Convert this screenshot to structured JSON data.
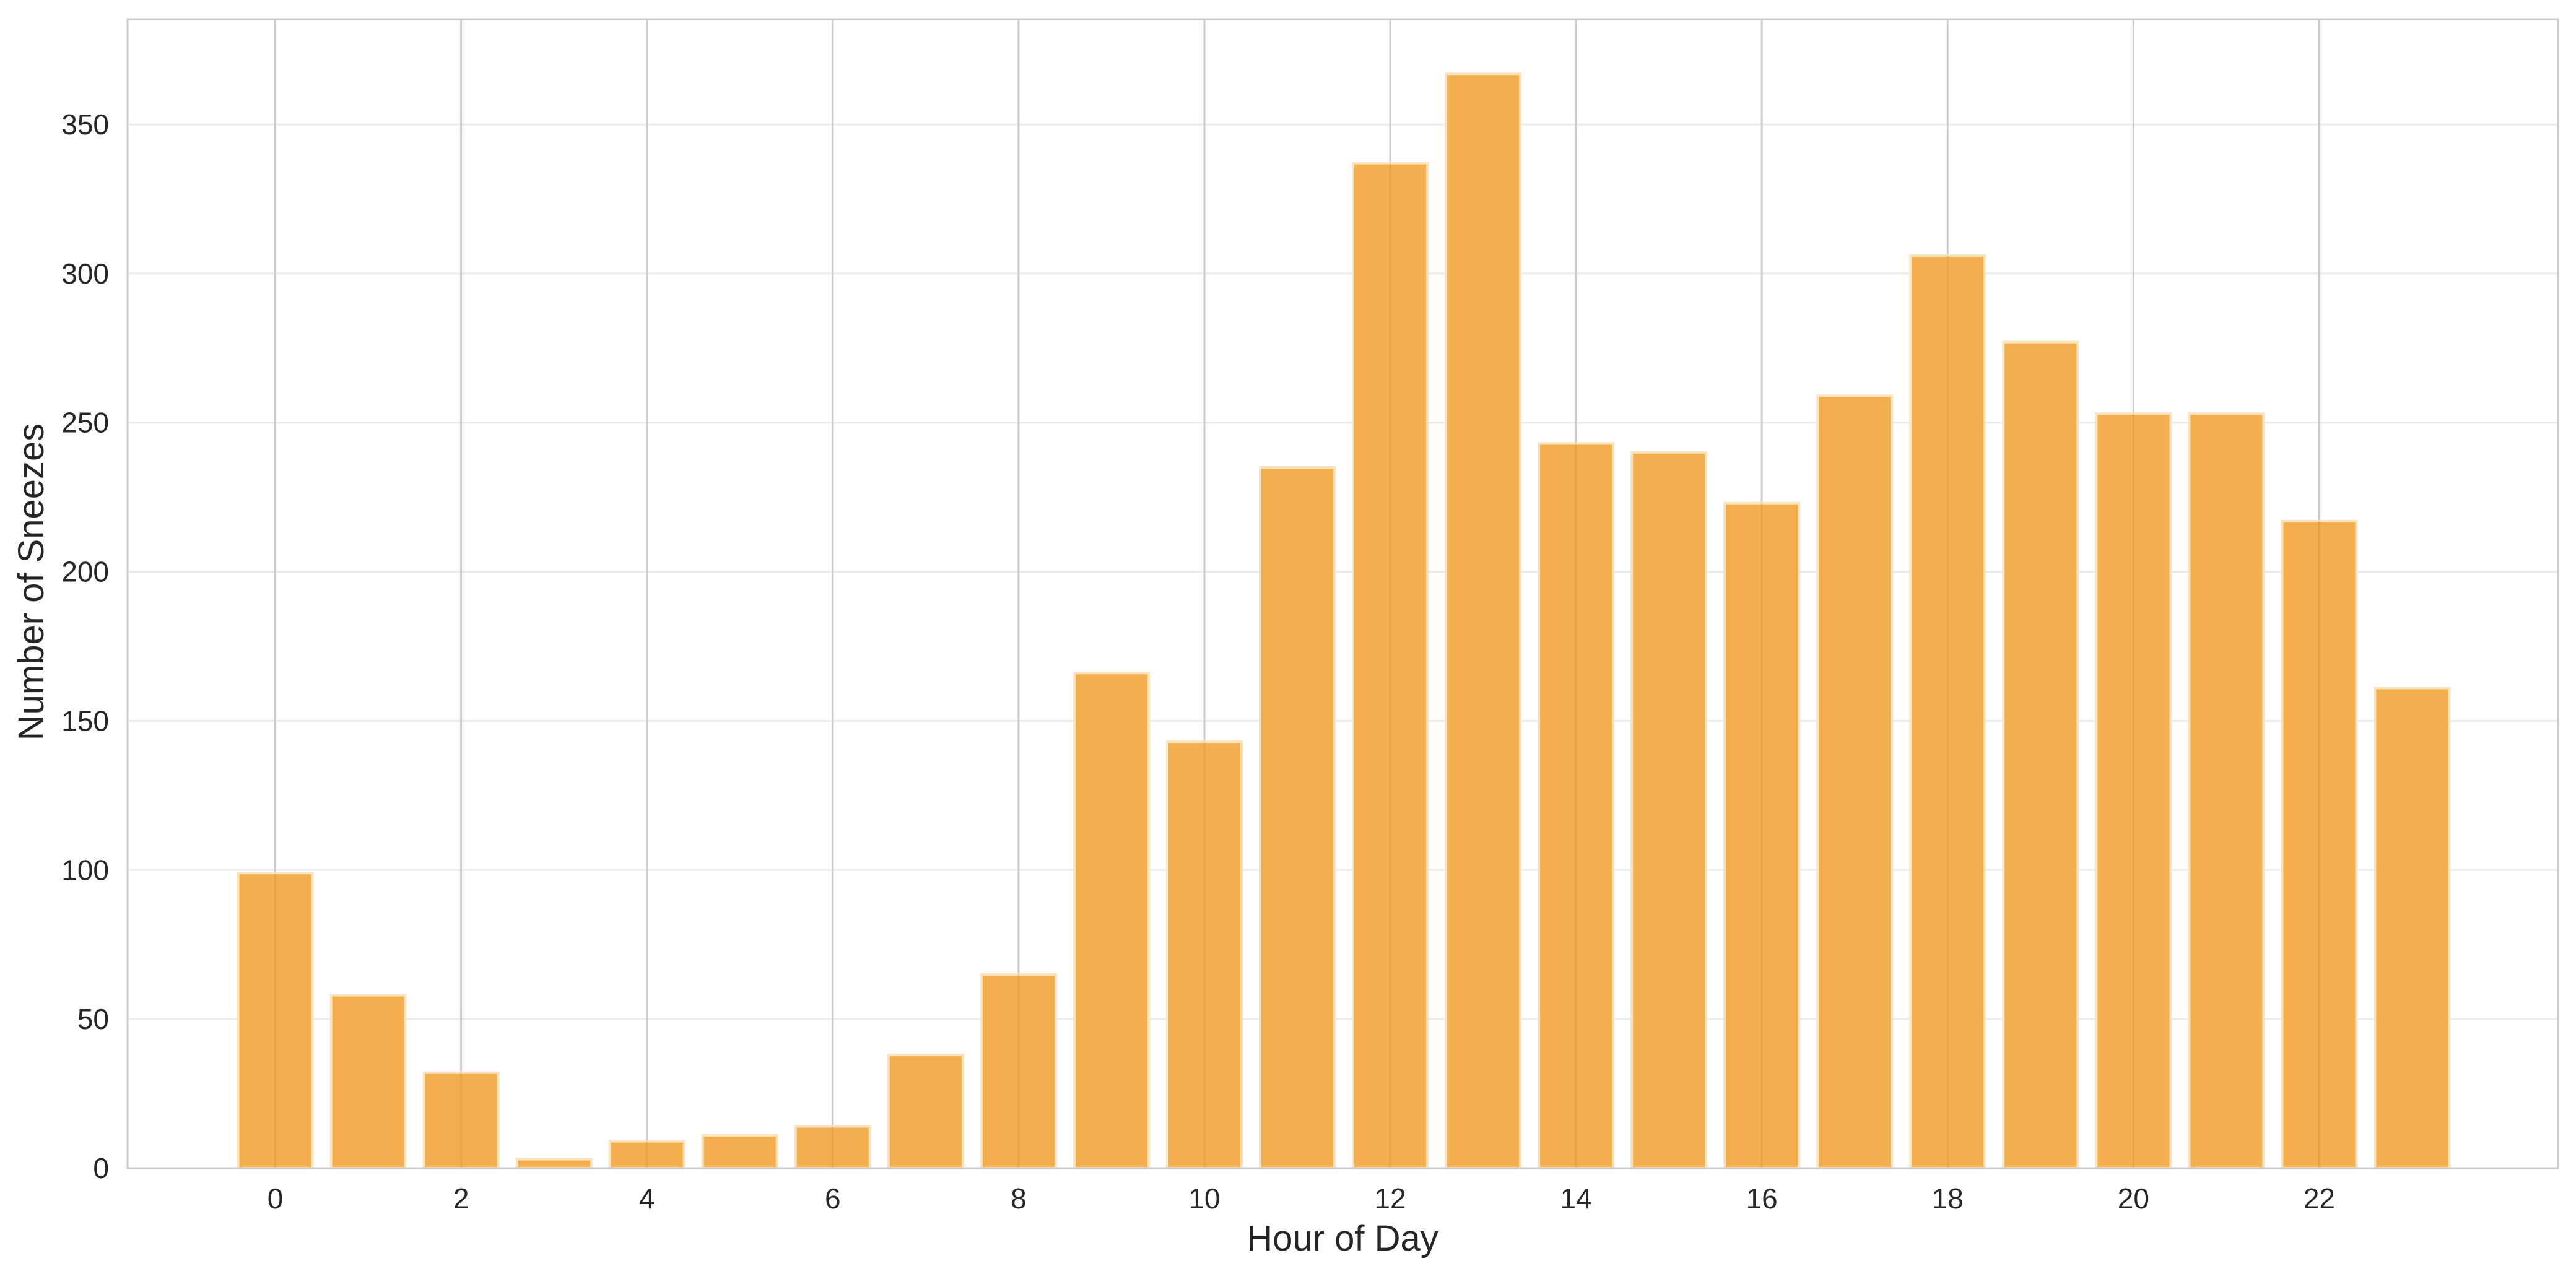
{
  "chart_data": {
    "type": "bar",
    "title": "",
    "xlabel": "Hour of Day",
    "ylabel": "Number of Sneezes",
    "categories": [
      0,
      1,
      2,
      3,
      4,
      5,
      6,
      7,
      8,
      9,
      10,
      11,
      12,
      13,
      14,
      15,
      16,
      17,
      18,
      19,
      20,
      21,
      22,
      23
    ],
    "values": [
      99,
      58,
      32,
      3,
      9,
      11,
      14,
      38,
      65,
      166,
      143,
      235,
      337,
      367,
      243,
      240,
      223,
      259,
      306,
      277,
      253,
      253,
      217,
      161
    ],
    "xticks": [
      0,
      2,
      4,
      6,
      8,
      10,
      12,
      14,
      16,
      18,
      20,
      22
    ],
    "yticks": [
      0,
      50,
      100,
      150,
      200,
      250,
      300,
      350
    ],
    "xlim": [
      -1.59,
      24.57
    ],
    "ylim": [
      0,
      385.3
    ],
    "grid": true,
    "legend": null,
    "colors": {
      "bar_fill": "#F3AF4D",
      "bar_edge": "#FBE3BE",
      "vgrid": "#CCCCCC",
      "hgrid": "#EBEBEB",
      "frame": "#CCCCCC",
      "text": "#262626"
    }
  }
}
